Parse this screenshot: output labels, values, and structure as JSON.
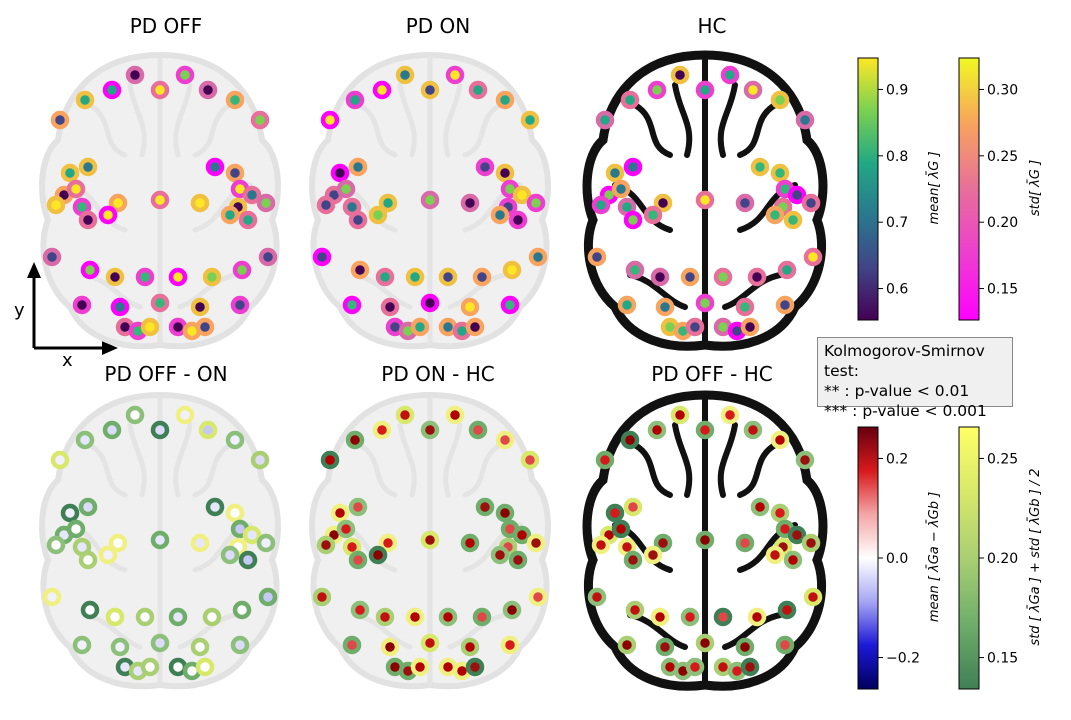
{
  "panels": [
    {
      "title": "PD OFF",
      "row": 0,
      "col": 0,
      "fill": "seqA",
      "ring": "stdA",
      "filled": true,
      "dark_brain": false
    },
    {
      "title": "PD ON",
      "row": 0,
      "col": 1,
      "fill": "seqA",
      "ring": "stdA",
      "filled": true,
      "dark_brain": false
    },
    {
      "title": "HC",
      "row": 0,
      "col": 2,
      "fill": "seqA",
      "ring": "stdA",
      "filled": true,
      "dark_brain": true
    },
    {
      "title": "PD OFF - ON",
      "row": 1,
      "col": 0,
      "fill": "div",
      "ring": "stdB",
      "filled": false,
      "dark_brain": false
    },
    {
      "title": "PD ON - HC",
      "row": 1,
      "col": 1,
      "fill": "div",
      "ring": "stdB",
      "filled": true,
      "dark_brain": false
    },
    {
      "title": "PD OFF - HC",
      "row": 1,
      "col": 2,
      "fill": "div",
      "ring": "stdB",
      "filled": true,
      "dark_brain": true
    }
  ],
  "axes": {
    "y": "y",
    "x": "x"
  },
  "colorbars": [
    {
      "id": "mean-top",
      "label": "mean[ λ̄G ]",
      "ticks": [
        "0.9",
        "0.8",
        "0.7",
        "0.6"
      ],
      "colors": [
        "#fde725",
        "#7ad151",
        "#22a884",
        "#2a788e",
        "#414487",
        "#440154"
      ]
    },
    {
      "id": "std-top",
      "label": "std[ λ̄G ]",
      "ticks": [
        "0.30",
        "0.25",
        "0.20",
        "0.15"
      ],
      "colors": [
        "#f0f921",
        "#f8a35e",
        "#e76f9a",
        "#ee3ed0",
        "#ff00ff"
      ]
    },
    {
      "id": "mean-bot",
      "label": "mean [ λ̄Ga − λ̄Gb ]",
      "ticks": [
        "0.2",
        "0.0",
        "−0.2"
      ],
      "colors": [
        "#67000d",
        "#d7191c",
        "#f4a6a6",
        "#ffffff",
        "#a6a6f4",
        "#1c19d7",
        "#00005d"
      ]
    },
    {
      "id": "std-bot",
      "label": "std [ λ̄Ga ] + std [ λ̄Gb ] / 2",
      "ticks": [
        "0.25",
        "0.20",
        "0.15"
      ],
      "colors": [
        "#ffff66",
        "#d7e86a",
        "#a9cf72",
        "#6fae6a",
        "#3f7f55"
      ]
    }
  ],
  "legend": {
    "title": "Kolmogorov-Smirnov test:",
    "line1": "**  : p-value < 0.01",
    "line2": "*** : p-value < 0.001"
  }
}
